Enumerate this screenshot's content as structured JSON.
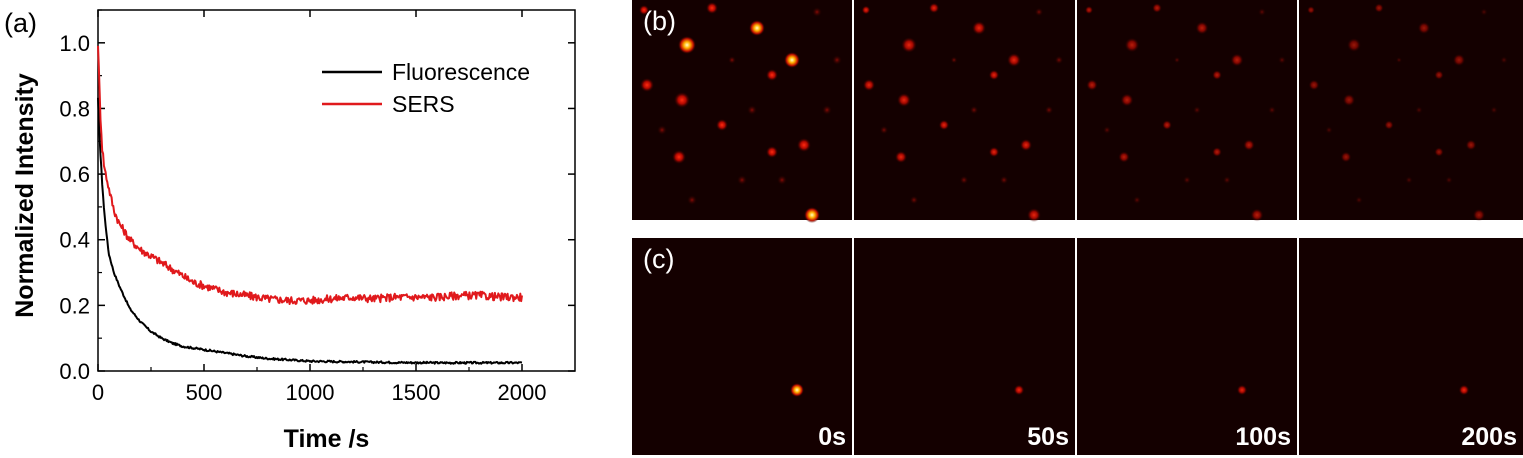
{
  "figure_labels": {
    "a": "(a)",
    "b": "(b)",
    "c": "(c)"
  },
  "chart_data": {
    "type": "line",
    "xlabel": "Time /s",
    "ylabel": "Normalized Intensity",
    "xlim": [
      0,
      2250
    ],
    "ylim": [
      0,
      1.1
    ],
    "xticks": [
      0,
      500,
      1000,
      1500,
      2000
    ],
    "yticks": [
      0.0,
      0.2,
      0.4,
      0.6,
      0.8,
      1.0
    ],
    "xtick_labels": [
      "0",
      "500",
      "1000",
      "1500",
      "2000"
    ],
    "ytick_labels": [
      "0.0",
      "0.2",
      "0.4",
      "0.6",
      "0.8",
      "1.0"
    ],
    "grid": false,
    "legend_position": "top-right",
    "series": [
      {
        "name": "Fluorescence",
        "color": "#000000",
        "x": [
          0,
          10,
          20,
          30,
          50,
          75,
          100,
          150,
          200,
          250,
          300,
          350,
          400,
          500,
          600,
          700,
          800,
          900,
          1000,
          1200,
          1400,
          1600,
          1800,
          2000
        ],
        "y": [
          0.83,
          0.68,
          0.57,
          0.48,
          0.36,
          0.3,
          0.26,
          0.19,
          0.15,
          0.12,
          0.1,
          0.085,
          0.075,
          0.065,
          0.055,
          0.045,
          0.038,
          0.034,
          0.03,
          0.028,
          0.026,
          0.025,
          0.025,
          0.025
        ]
      },
      {
        "name": "SERS",
        "color": "#e0191c",
        "x": [
          0,
          10,
          20,
          30,
          50,
          75,
          100,
          150,
          200,
          250,
          300,
          350,
          400,
          450,
          500,
          550,
          600,
          650,
          700,
          800,
          900,
          1000,
          1100,
          1200,
          1300,
          1400,
          1500,
          1600,
          1700,
          1800,
          1900,
          2000
        ],
        "y": [
          1.0,
          0.8,
          0.68,
          0.62,
          0.56,
          0.49,
          0.45,
          0.4,
          0.37,
          0.35,
          0.33,
          0.31,
          0.29,
          0.27,
          0.26,
          0.25,
          0.24,
          0.235,
          0.23,
          0.22,
          0.215,
          0.215,
          0.22,
          0.225,
          0.22,
          0.225,
          0.225,
          0.225,
          0.23,
          0.23,
          0.225,
          0.225
        ]
      }
    ]
  },
  "micrographs": {
    "time_labels": [
      "0s",
      "50s",
      "100s",
      "200s"
    ],
    "row_b_brightness": [
      1.0,
      0.55,
      0.35,
      0.22
    ],
    "row_c_brightness": [
      1.0,
      0.6,
      0.55,
      0.6
    ]
  }
}
